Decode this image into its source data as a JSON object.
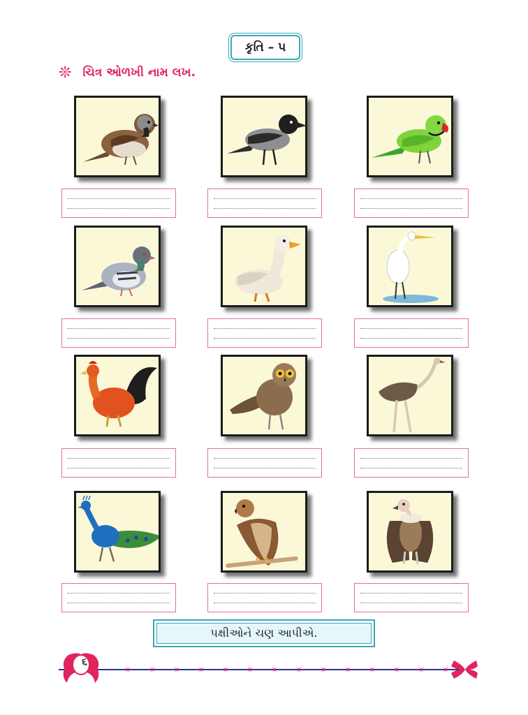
{
  "header": {
    "title": "કૃતિ – ૫"
  },
  "instruction": {
    "icon": "flower-icon",
    "text": "ચિત્ર ઓળખી નામ લખ."
  },
  "birds": [
    {
      "icon": "sparrow-icon"
    },
    {
      "icon": "crow-icon"
    },
    {
      "icon": "parrot-icon"
    },
    {
      "icon": "pigeon-icon"
    },
    {
      "icon": "duck-icon"
    },
    {
      "icon": "egret-icon"
    },
    {
      "icon": "rooster-icon"
    },
    {
      "icon": "owl-icon"
    },
    {
      "icon": "ostrich-icon"
    },
    {
      "icon": "peacock-icon"
    },
    {
      "icon": "eagle-icon"
    },
    {
      "icon": "vulture-icon"
    }
  ],
  "slogan": {
    "text": "પક્ષીઓને ચણ આપીએ."
  },
  "footer": {
    "page_number": "૬"
  },
  "colors": {
    "accent": "#e0245e",
    "frame": "#3aa7b5",
    "answer_border": "#e66aa5",
    "card_bg": "#fbf8d8"
  }
}
